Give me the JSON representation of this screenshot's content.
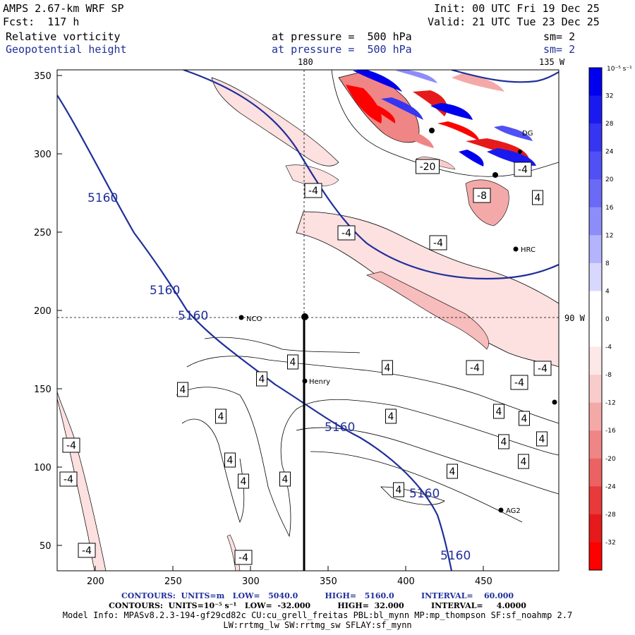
{
  "header": {
    "model": "AMPS 2.67-km WRF SP",
    "init": "Init: 00 UTC Fri 19 Dec 25",
    "fcst": "Fcst:  117 h",
    "valid": "Valid: 21 UTC Tue 23 Dec 25",
    "field1": "Relative vorticity",
    "field2": "Geopotential height",
    "pressure1": "at pressure =  500 hPa",
    "pressure2": "at pressure =  500 hPa",
    "sm1": "sm= 2",
    "sm2": "sm= 2"
  },
  "map": {
    "meridian_label_180": "180",
    "meridian_label_135w": "135 W",
    "meridian_label_90w": "90 W",
    "x_ticks": [
      "200",
      "250",
      "300",
      "350",
      "400",
      "450"
    ],
    "y_ticks": [
      "350",
      "300",
      "250",
      "200",
      "150",
      "100",
      "50"
    ],
    "stations": [
      {
        "name": "NCO"
      },
      {
        "name": "Henry"
      },
      {
        "name": "HRC"
      },
      {
        "name": "AG2"
      },
      {
        "name": "DG"
      }
    ],
    "height_contour_labels": [
      "5160",
      "5160",
      "5160",
      "5160",
      "5160",
      "5160"
    ],
    "vorticity_labels": [
      "-20",
      "-8",
      "-4",
      "-4",
      "-4",
      "-4",
      "-4",
      "-4",
      "-4",
      "-4",
      "-4",
      "-4",
      "-4",
      "4",
      "4",
      "4",
      "4",
      "4",
      "4",
      "4",
      "4",
      "4",
      "4",
      "4",
      "4",
      "4",
      "4",
      "4",
      "4",
      "4"
    ]
  },
  "colorbar": {
    "units": "10⁻⁵ s⁻¹",
    "ticks": [
      "32",
      "28",
      "24",
      "20",
      "16",
      "12",
      "8",
      "4",
      "0",
      "-4",
      "-8",
      "-12",
      "-16",
      "-20",
      "-24",
      "-28",
      "-32"
    ],
    "colors": [
      "#0000ee",
      "#1a1af0",
      "#3535f2",
      "#5050f4",
      "#6a6af6",
      "#8d8dfa",
      "#b4b4fc",
      "#d8d8fe",
      "#ffffff",
      "#ffffff",
      "#fde8e8",
      "#f9cccc",
      "#f4a9a9",
      "#f08585",
      "#ec6262",
      "#e83a3a",
      "#e61a1a",
      "#ff0000"
    ]
  },
  "footer": {
    "line1": "CONTOURS:  UNITS=m   LOW=   5040.0          HIGH=   5160.0          INTERVAL=    60.000",
    "line2": "CONTOURS:  UNITS=10⁻⁵ s⁻¹   LOW=  -32.000          HIGH=  32.000          INTERVAL=     4.0000",
    "line3": "Model Info: MPASv8.2.3-194-gf29cd82c CU:cu_grell_freitas PBL:bl_mynn MP:mp_thompson SF:sf_noahmp 2.7",
    "line4": "LW:rrtmg_lw SW:rrtmg_sw SFLAY:sf_mynn"
  }
}
